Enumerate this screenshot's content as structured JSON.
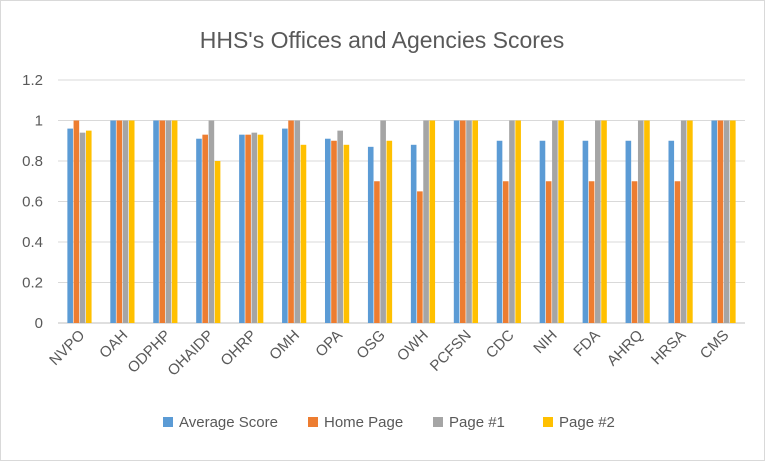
{
  "chart_data": {
    "type": "bar",
    "title": "HHS's Offices and Agencies Scores",
    "xlabel": "",
    "ylabel": "",
    "ylim": [
      0,
      1.2
    ],
    "yticks": [
      "0",
      "0.2",
      "0.4",
      "0.6",
      "0.8",
      "1",
      "1.2"
    ],
    "grid": true,
    "legend_position": "bottom",
    "categories": [
      "NVPO",
      "OAH",
      "ODPHP",
      "OHAIDP",
      "OHRP",
      "OMH",
      "OPA",
      "OSG",
      "OWH",
      "PCFSN",
      "CDC",
      "NIH",
      "FDA",
      "AHRQ",
      "HRSA",
      "CMS"
    ],
    "series": [
      {
        "name": "Average Score",
        "color": "#5b9bd5",
        "values": [
          0.96,
          1.0,
          1.0,
          0.91,
          0.93,
          0.96,
          0.91,
          0.87,
          0.88,
          1.0,
          0.9,
          0.9,
          0.9,
          0.9,
          0.9,
          1.0
        ]
      },
      {
        "name": "Home Page",
        "color": "#ed7d31",
        "values": [
          1.0,
          1.0,
          1.0,
          0.93,
          0.93,
          1.0,
          0.9,
          0.7,
          0.65,
          1.0,
          0.7,
          0.7,
          0.7,
          0.7,
          0.7,
          1.0
        ]
      },
      {
        "name": "Page #1",
        "color": "#a5a5a5",
        "values": [
          0.94,
          1.0,
          1.0,
          1.0,
          0.94,
          1.0,
          0.95,
          1.0,
          1.0,
          1.0,
          1.0,
          1.0,
          1.0,
          1.0,
          1.0,
          1.0
        ]
      },
      {
        "name": "Page #2",
        "color": "#ffc000",
        "values": [
          0.95,
          1.0,
          1.0,
          0.8,
          0.93,
          0.88,
          0.88,
          0.9,
          1.0,
          1.0,
          1.0,
          1.0,
          1.0,
          1.0,
          1.0,
          1.0
        ]
      }
    ]
  }
}
